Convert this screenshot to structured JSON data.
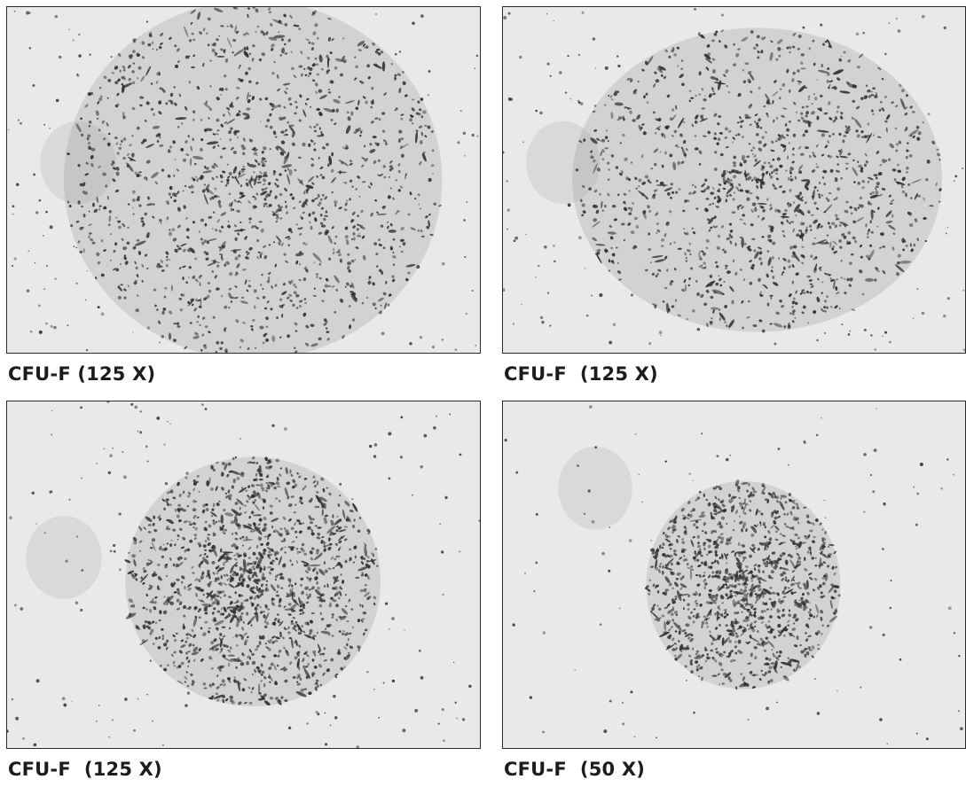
{
  "figure": {
    "panels": [
      {
        "caption": "CFU-F (125 X)",
        "colony": "large-dense-colony",
        "density": 0.95,
        "spread": 1.0
      },
      {
        "caption": "CFU-F  (125 X)",
        "colony": "large-diffuse-colony",
        "density": 0.85,
        "spread": 0.95
      },
      {
        "caption": "CFU-F  (125 X)",
        "colony": "compact-colony",
        "density": 1.0,
        "spread": 0.65
      },
      {
        "caption": "CFU-F  (50 X)",
        "colony": "small-colony-low-magnification",
        "density": 0.8,
        "spread": 0.45
      }
    ]
  },
  "colors": {
    "background": "#e9e9e9",
    "cells": "#2f2f2f",
    "frame": "#2a2a2a"
  }
}
